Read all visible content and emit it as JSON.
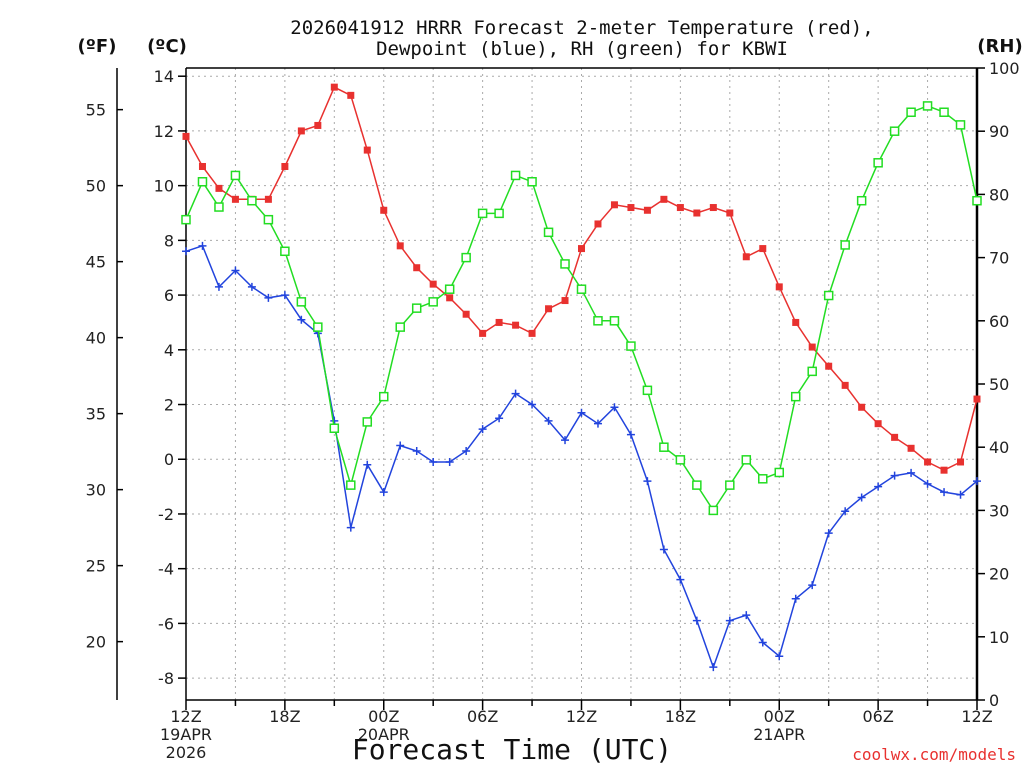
{
  "chart_data": {
    "type": "line",
    "title": "2026041912 HRRR Forecast 2-meter Temperature (red),",
    "subtitle": "Dewpoint (blue), RH (green) for KBWI",
    "xlabel": "Forecast Time (UTC)",
    "credit": "coolwx.com/models",
    "units": {
      "fahrenheit": "(ºF)",
      "celsius": "(ºC)",
      "rh": "(RH)"
    },
    "x": [
      0,
      1,
      2,
      3,
      4,
      5,
      6,
      7,
      8,
      9,
      10,
      11,
      12,
      13,
      14,
      15,
      16,
      17,
      18,
      19,
      20,
      21,
      22,
      23,
      24,
      25,
      26,
      27,
      28,
      29,
      30,
      31,
      32,
      33,
      34,
      35,
      36,
      37,
      38,
      39,
      40,
      41,
      42,
      43,
      44,
      45,
      46,
      47,
      48
    ],
    "xlim": [
      0,
      48
    ],
    "x_ticks": [
      {
        "pos": 0,
        "label": "12Z",
        "date": "19APR",
        "year": "2026"
      },
      {
        "pos": 6,
        "label": "18Z"
      },
      {
        "pos": 12,
        "label": "00Z",
        "date": "20APR"
      },
      {
        "pos": 18,
        "label": "06Z"
      },
      {
        "pos": 24,
        "label": "12Z"
      },
      {
        "pos": 30,
        "label": "18Z"
      },
      {
        "pos": 36,
        "label": "00Z",
        "date": "21APR"
      },
      {
        "pos": 42,
        "label": "06Z"
      },
      {
        "pos": 48,
        "label": "12Z"
      }
    ],
    "ylim_celsius": [
      -8.8,
      14.3
    ],
    "yticks_celsius": [
      "-8",
      "-6",
      "-4",
      "-2",
      "0",
      "2",
      "4",
      "6",
      "8",
      "10",
      "12",
      "14"
    ],
    "yticks_fahrenheit": [
      "20",
      "25",
      "30",
      "35",
      "40",
      "45",
      "50",
      "55"
    ],
    "ylim_rh": [
      0,
      100
    ],
    "yticks_rh": [
      "0",
      "10",
      "20",
      "30",
      "40",
      "50",
      "60",
      "70",
      "80",
      "90",
      "100"
    ],
    "grid": true,
    "series": [
      {
        "name": "Temperature",
        "axis": "celsius",
        "color": "#e8312f",
        "marker": "filled-square",
        "values": [
          11.8,
          10.7,
          9.9,
          9.5,
          9.5,
          9.5,
          10.7,
          12.0,
          12.2,
          13.6,
          13.3,
          11.3,
          9.1,
          7.8,
          7.0,
          6.4,
          5.9,
          5.3,
          4.6,
          5.0,
          4.9,
          4.6,
          5.5,
          5.8,
          7.7,
          8.6,
          9.3,
          9.2,
          9.1,
          9.5,
          9.2,
          9.0,
          9.2,
          9.0,
          7.4,
          7.7,
          6.3,
          5.0,
          4.1,
          3.4,
          2.7,
          1.9,
          1.3,
          0.8,
          0.4,
          -0.1,
          -0.4,
          -0.1,
          2.2
        ]
      },
      {
        "name": "Dewpoint",
        "axis": "celsius",
        "color": "#2244dd",
        "marker": "plus",
        "values": [
          7.6,
          7.8,
          6.3,
          6.9,
          6.3,
          5.9,
          6.0,
          5.1,
          4.6,
          1.4,
          -2.5,
          -0.2,
          -1.2,
          0.5,
          0.3,
          -0.1,
          -0.1,
          0.3,
          1.1,
          1.5,
          2.4,
          2.0,
          1.4,
          0.7,
          1.7,
          1.3,
          1.9,
          0.9,
          -0.8,
          -3.3,
          -4.4,
          -5.9,
          -7.6,
          -5.9,
          -5.7,
          -6.7,
          -7.2,
          -5.1,
          -4.6,
          -2.7,
          -1.9,
          -1.4,
          -1.0,
          -0.6,
          -0.5,
          -0.9,
          -1.2,
          -1.3,
          -0.8
        ]
      },
      {
        "name": "RH",
        "axis": "rh",
        "color": "#22dd22",
        "marker": "open-square",
        "values": [
          76,
          82,
          78,
          83,
          79,
          76,
          71,
          63,
          59,
          43,
          34,
          44,
          48,
          59,
          62,
          63,
          65,
          70,
          77,
          77,
          83,
          82,
          74,
          69,
          65,
          60,
          60,
          56,
          49,
          40,
          38,
          34,
          30,
          34,
          38,
          35,
          36,
          48,
          52,
          64,
          72,
          79,
          85,
          90,
          93,
          94,
          93,
          91,
          79
        ]
      }
    ]
  }
}
